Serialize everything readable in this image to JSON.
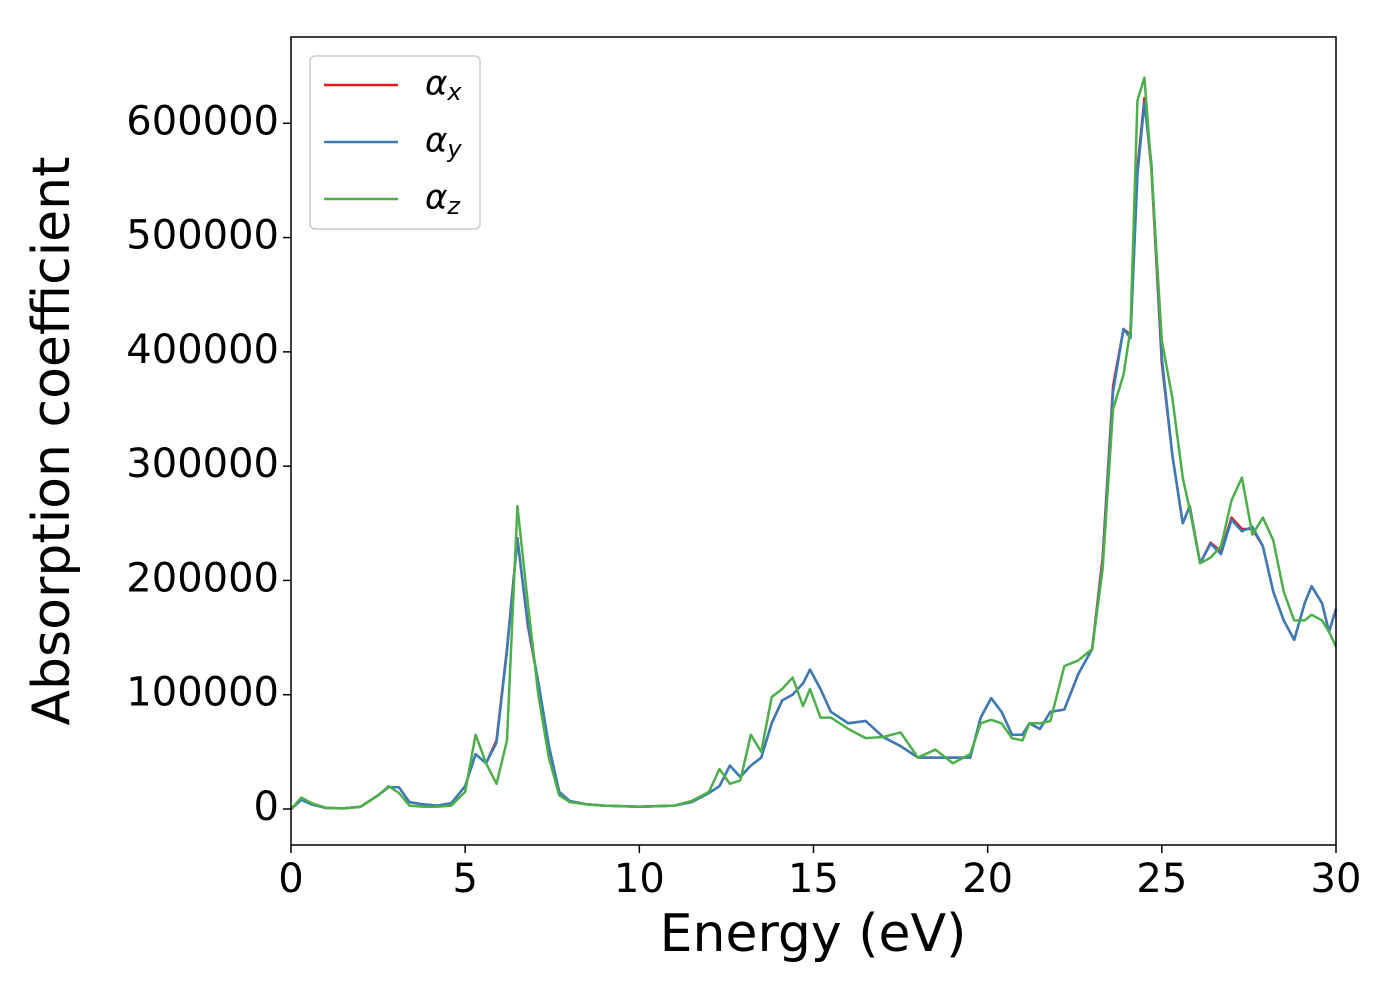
{
  "chart_data": {
    "type": "line",
    "xlabel": "Energy (eV)",
    "ylabel": "Absorption coefficient",
    "x": [
      0,
      0.3,
      0.6,
      1,
      1.5,
      2,
      2.5,
      2.8,
      3.1,
      3.4,
      3.8,
      4.2,
      4.6,
      5,
      5.3,
      5.6,
      5.9,
      6.2,
      6.5,
      6.8,
      7.1,
      7.4,
      7.7,
      8,
      8.5,
      9,
      10,
      11,
      11.5,
      12,
      12.3,
      12.6,
      12.9,
      13.2,
      13.5,
      13.8,
      14.1,
      14.4,
      14.7,
      14.9,
      15.2,
      15.5,
      16,
      16.5,
      17,
      17.5,
      18,
      18.5,
      19,
      19.5,
      19.8,
      20.1,
      20.4,
      20.7,
      21,
      21.2,
      21.5,
      21.8,
      22.2,
      22.6,
      23,
      23.3,
      23.6,
      23.9,
      24.1,
      24.3,
      24.5,
      24.7,
      25,
      25.3,
      25.6,
      25.8,
      26.1,
      26.4,
      26.7,
      27,
      27.3,
      27.6,
      27.9,
      28.2,
      28.5,
      28.8,
      29.1,
      29.3,
      29.6,
      29.8,
      30
    ],
    "series": [
      {
        "name": "αx",
        "color": "#e41a1c",
        "values": [
          0,
          8000,
          4000,
          1000,
          500,
          2000,
          12000,
          19000,
          19000,
          6000,
          4000,
          3000,
          5000,
          20000,
          48000,
          40000,
          60000,
          140000,
          237000,
          160000,
          110000,
          55000,
          15000,
          7000,
          4000,
          3000,
          2000,
          3000,
          6000,
          14000,
          20000,
          38000,
          28000,
          38000,
          45000,
          75000,
          95000,
          100000,
          110000,
          122000,
          105000,
          85000,
          75000,
          77000,
          63000,
          55000,
          45000,
          45000,
          45000,
          45000,
          80000,
          97000,
          85000,
          65000,
          65000,
          75000,
          70000,
          85000,
          87000,
          118000,
          140000,
          220000,
          370000,
          420000,
          415000,
          560000,
          622000,
          560000,
          390000,
          310000,
          250000,
          265000,
          215000,
          233000,
          225000,
          255000,
          245000,
          245000,
          230000,
          190000,
          165000,
          148000,
          180000,
          195000,
          180000,
          155000,
          175000
        ]
      },
      {
        "name": "αy",
        "color": "#377eb8",
        "values": [
          0,
          8000,
          4000,
          1000,
          500,
          2000,
          12000,
          19000,
          19000,
          6000,
          4000,
          3000,
          5000,
          20000,
          48000,
          40000,
          58000,
          138000,
          236000,
          162000,
          111000,
          56000,
          15000,
          7000,
          4000,
          3000,
          2000,
          3000,
          6000,
          14000,
          20000,
          38000,
          28000,
          38000,
          45000,
          75000,
          95000,
          100000,
          110000,
          122000,
          105000,
          85000,
          75000,
          77000,
          63000,
          55000,
          45000,
          45000,
          45000,
          45000,
          80000,
          97000,
          85000,
          65000,
          65000,
          75000,
          70000,
          85000,
          87000,
          118000,
          140000,
          215000,
          365000,
          420000,
          412000,
          555000,
          618000,
          565000,
          395000,
          310000,
          250000,
          265000,
          215000,
          232000,
          223000,
          253000,
          243000,
          247000,
          230000,
          190000,
          165000,
          148000,
          180000,
          195000,
          180000,
          155000,
          175000
        ]
      },
      {
        "name": "αz",
        "color": "#4daf4a",
        "values": [
          0,
          10000,
          5000,
          1000,
          500,
          2000,
          12000,
          20000,
          14000,
          3000,
          2000,
          2000,
          3000,
          15000,
          65000,
          40000,
          22000,
          60000,
          265000,
          180000,
          100000,
          45000,
          12000,
          6000,
          4000,
          3000,
          2000,
          3000,
          7000,
          15000,
          35000,
          22000,
          25000,
          65000,
          50000,
          98000,
          105000,
          115000,
          90000,
          105000,
          80000,
          80000,
          70000,
          62000,
          63000,
          67000,
          45000,
          52000,
          40000,
          48000,
          75000,
          78000,
          75000,
          62000,
          60000,
          75000,
          75000,
          77000,
          125000,
          130000,
          140000,
          210000,
          350000,
          380000,
          420000,
          620000,
          640000,
          560000,
          410000,
          360000,
          290000,
          262000,
          215000,
          220000,
          230000,
          270000,
          290000,
          240000,
          255000,
          235000,
          190000,
          165000,
          165000,
          170000,
          165000,
          155000,
          142000
        ]
      }
    ],
    "xlim": [
      0,
      30
    ],
    "xticks": [
      0,
      5,
      10,
      15,
      20,
      25,
      30
    ],
    "ylim": [
      -31500,
      675500
    ],
    "yticks": [
      0,
      100000,
      200000,
      300000,
      400000,
      500000,
      600000
    ],
    "legend": "upper left"
  }
}
